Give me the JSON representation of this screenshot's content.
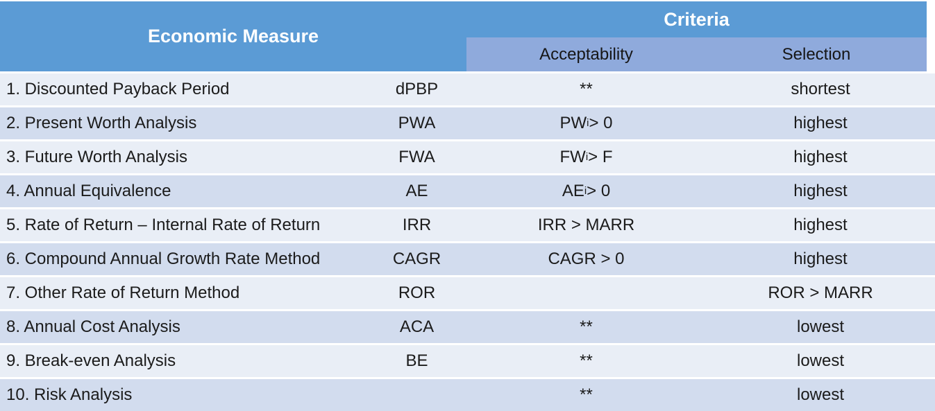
{
  "table": {
    "header": {
      "economic_measure": "Economic Measure",
      "criteria": "Criteria",
      "acceptability": "Acceptability",
      "selection": "Selection"
    },
    "colors": {
      "header_blue": "#5B9BD5",
      "subheader_periwinkle": "#8FAADC",
      "row_light": "#E9EEF6",
      "row_dark": "#D2DCEE",
      "header_text": "#FFFFFF",
      "body_text": "#1B1B1B"
    },
    "rows": [
      {
        "measure": "1. Discounted Payback Period",
        "abbr": "dPBP",
        "accept": "**",
        "selection": "shortest"
      },
      {
        "measure": "2. Present Worth Analysis",
        "abbr": "PWA",
        "accept": "PW",
        "accept_sub": "i",
        "accept_rest": " > 0",
        "selection": "highest"
      },
      {
        "measure": "3. Future Worth Analysis",
        "abbr": "FWA",
        "accept": "FW",
        "accept_sub": "i",
        "accept_rest": " > F",
        "selection": "highest"
      },
      {
        "measure": "4. Annual Equivalence",
        "abbr": "AE",
        "accept": "AE",
        "accept_sub": "i",
        "accept_rest": " > 0",
        "selection": "highest"
      },
      {
        "measure": "5. Rate of Return – Internal Rate of Return",
        "abbr": "IRR",
        "accept": "IRR > MARR",
        "selection": "highest"
      },
      {
        "measure": "6. Compound Annual Growth Rate Method",
        "abbr": "CAGR",
        "accept": "CAGR > 0",
        "selection": "highest"
      },
      {
        "measure": "7. Other Rate of Return Method",
        "abbr": "ROR",
        "accept": "",
        "selection": "ROR > MARR"
      },
      {
        "measure": "8. Annual Cost Analysis",
        "abbr": "ACA",
        "accept": "**",
        "selection": "lowest"
      },
      {
        "measure": "9. Break-even Analysis",
        "abbr": "BE",
        "accept": "**",
        "selection": "lowest"
      },
      {
        "measure": "10. Risk Analysis",
        "abbr": "",
        "accept": "**",
        "selection": "lowest"
      }
    ]
  }
}
